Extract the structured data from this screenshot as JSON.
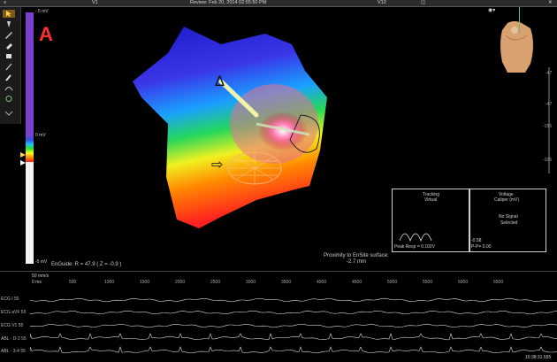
{
  "topbar": {
    "left_label": "V1",
    "center_label": "Review: Feb 20, 2014 02:55:50 PM",
    "right_label": "V12"
  },
  "figure_letter": "A",
  "colorbar": {
    "top_label": "-.5 mV",
    "mid_label": "-.5 mV",
    "low_label": "0 mV",
    "bottom_label": "-5 mV"
  },
  "map_status": {
    "enguide": "EnGuide: R = 47.9  ( Z = -0.9 )",
    "proximity_title": "Proximity to EnSite surface:",
    "proximity_value": "-2.7 mm",
    "catheter_label": "ABL",
    "ecg_label": "ECG"
  },
  "markers": {
    "triangle": "Δ",
    "arrow": "⇨"
  },
  "tracking_panel": {
    "title": "Tracking",
    "subtitle": "Virtual",
    "footer": "Peak Resp = 0.102V"
  },
  "voltage_panel": {
    "title": "Voltage",
    "subtitle": "Caliper (mV)",
    "no_signal": "No Signal",
    "selected": "Selected",
    "value1": "-0.58",
    "value2": "P-P= 0.00"
  },
  "right_scale": {
    "labels": [
      "-47",
      "-47",
      "-155",
      "-105"
    ]
  },
  "ecg": {
    "sweep_speed": "50 mm/s",
    "ruler_start": "0 ms",
    "ruler": [
      "500",
      "1000",
      "1500",
      "2000",
      "2500",
      "3000",
      "3500",
      "4000",
      "4500",
      "5000",
      "5500",
      "6000",
      "6500"
    ],
    "leads": [
      "ECG I 55",
      "ECG aVF 55",
      "ECG V1 55",
      "ABL - D-2 55",
      "ABL - 3-4 55"
    ],
    "timestamp": "15:38:31.555"
  },
  "colors": {
    "accent_purple": "#7a3fd0",
    "letter_red": "#ff3030"
  }
}
